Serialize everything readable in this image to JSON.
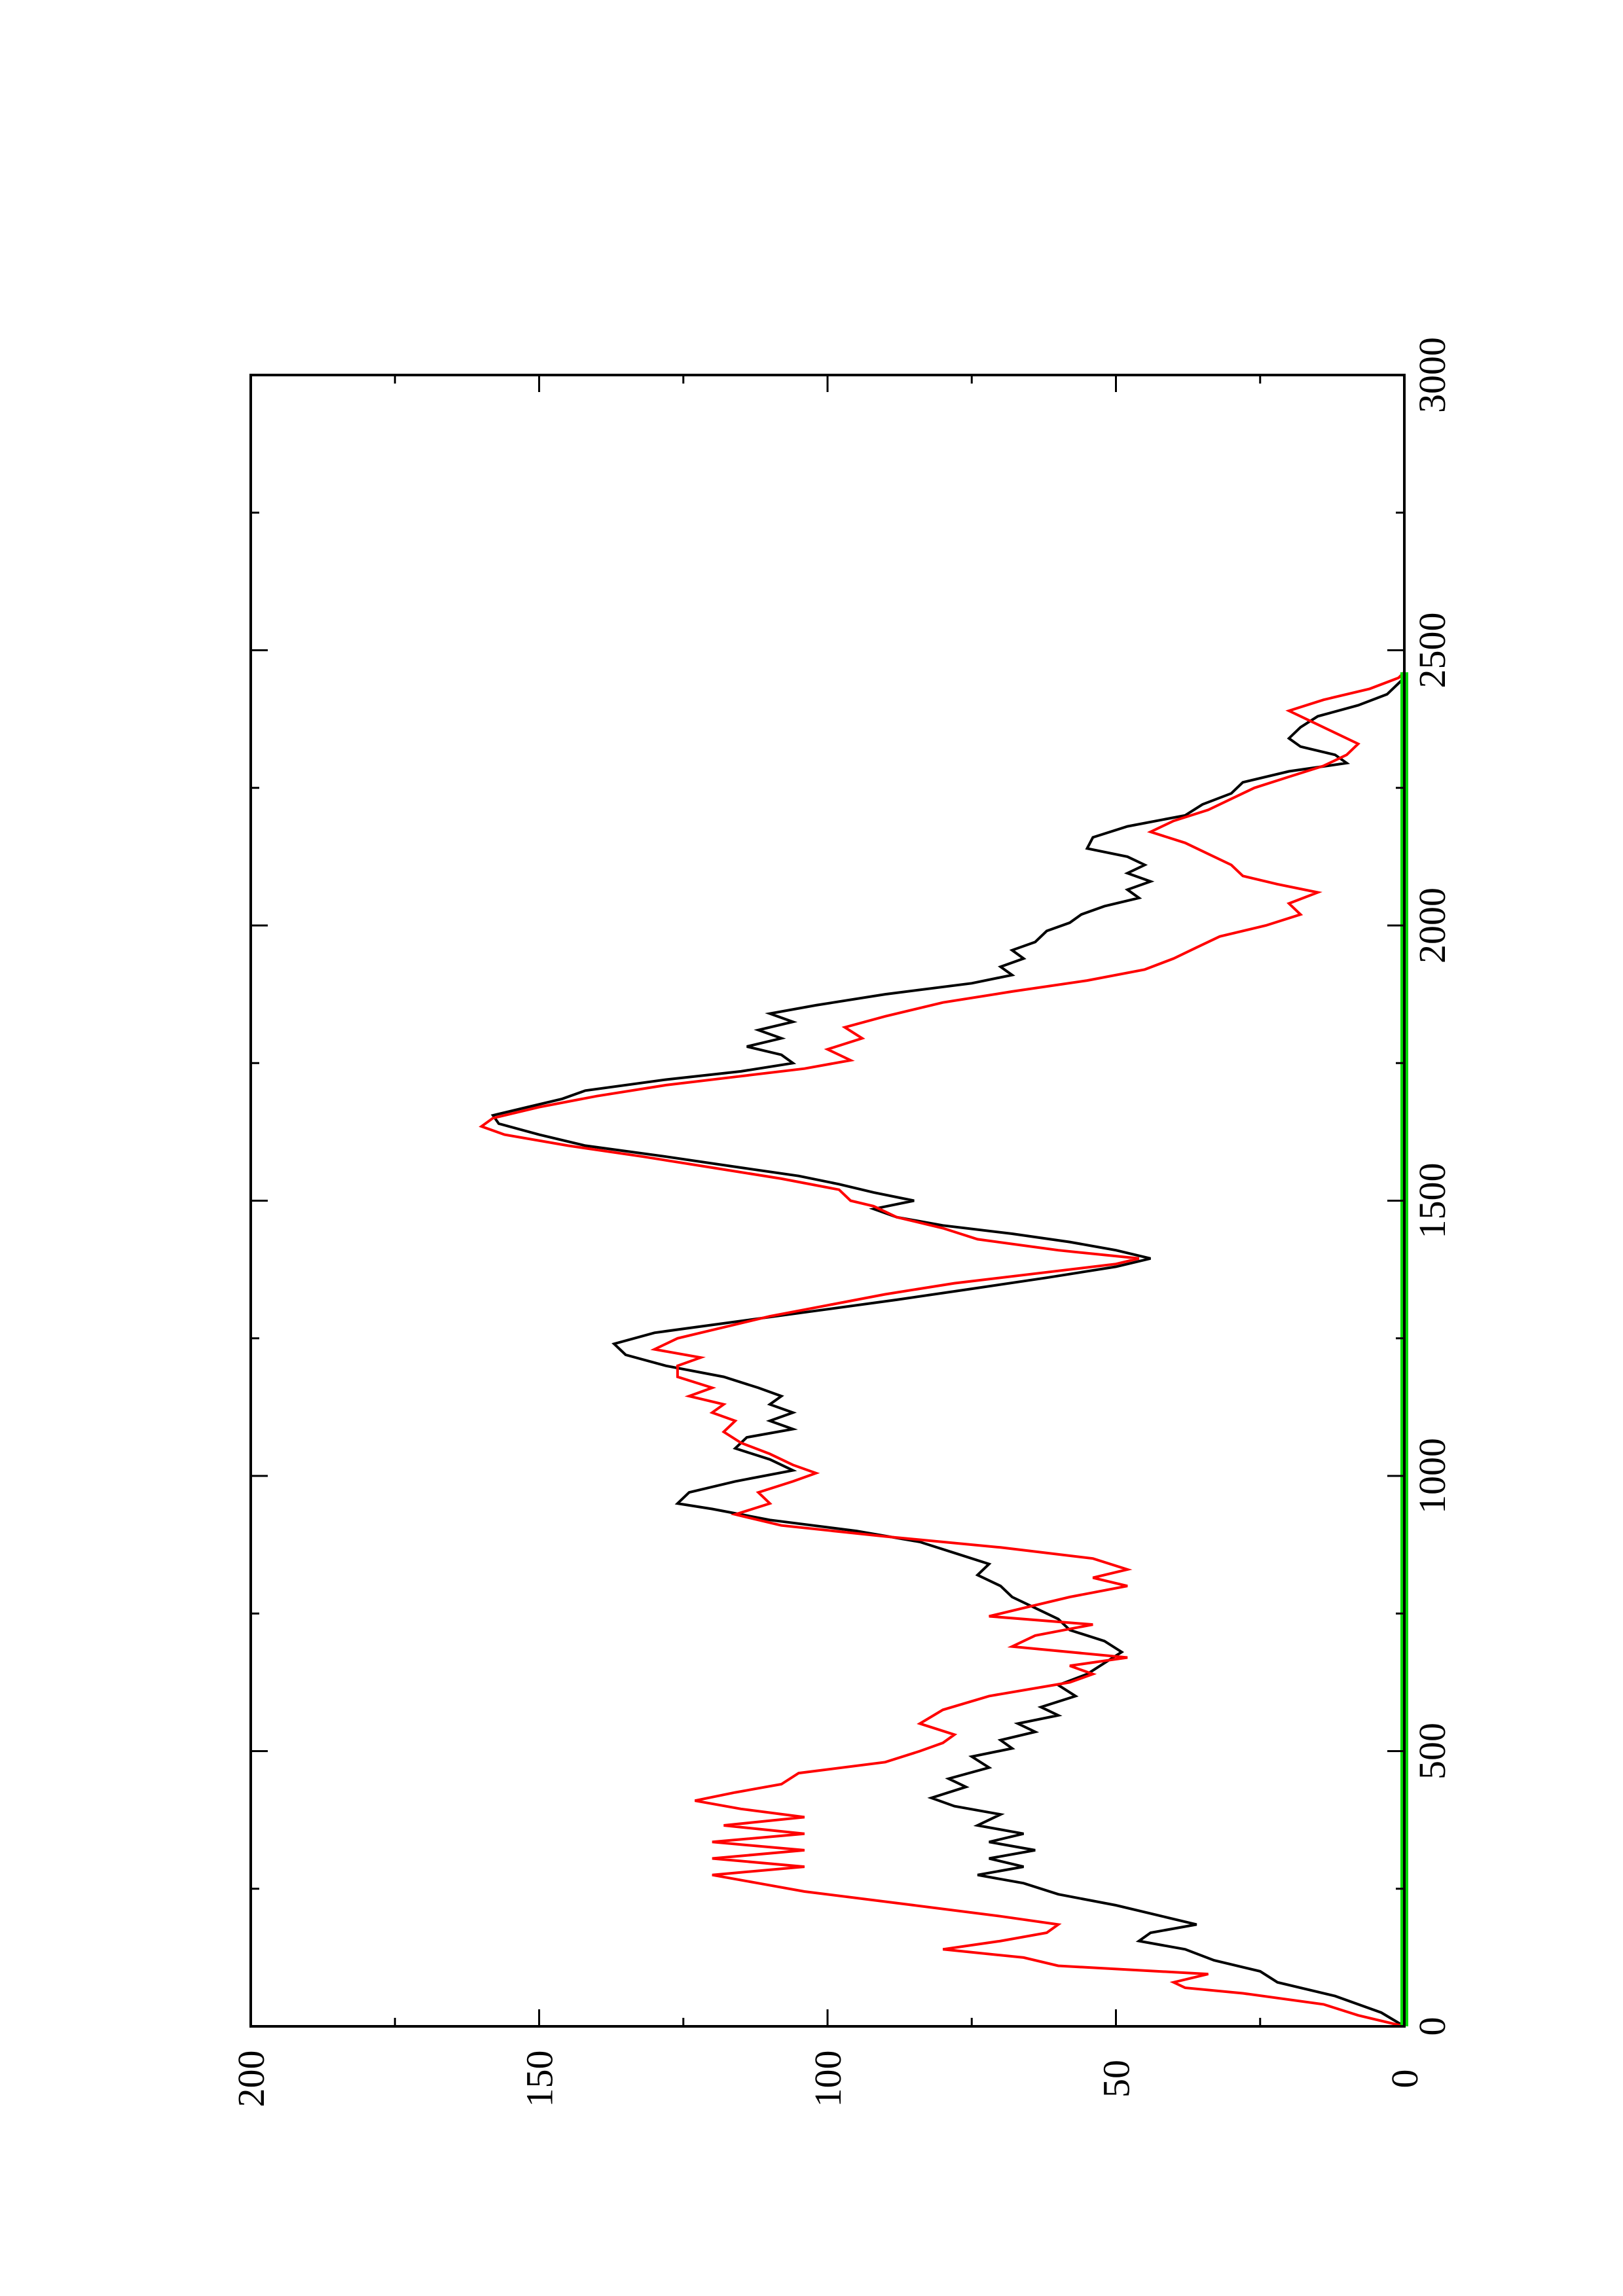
{
  "chart_data": {
    "type": "line",
    "orientation": "rotated-90-ccw",
    "title": "",
    "xlabel": "",
    "ylabel": "",
    "xlim": [
      0,
      3000
    ],
    "ylim": [
      0,
      200
    ],
    "x_ticks_major": [
      0,
      500,
      1000,
      1500,
      2000,
      2500,
      3000
    ],
    "x_tick_labels": [
      "0",
      "500",
      "1000",
      "1500",
      "2000",
      "2500",
      "3000"
    ],
    "y_ticks_major": [
      0,
      50,
      100,
      150,
      200
    ],
    "y_tick_labels": [
      "0",
      "50",
      "100",
      "150",
      "200"
    ],
    "grid": false,
    "legend": "none",
    "series": [
      {
        "color": "#000000",
        "points": [
          [
            0,
            0
          ],
          [
            25,
            4
          ],
          [
            55,
            12
          ],
          [
            80,
            22
          ],
          [
            100,
            25
          ],
          [
            120,
            33
          ],
          [
            140,
            38
          ],
          [
            155,
            46
          ],
          [
            170,
            44
          ],
          [
            185,
            36
          ],
          [
            200,
            42
          ],
          [
            220,
            50
          ],
          [
            240,
            60
          ],
          [
            260,
            66
          ],
          [
            275,
            74
          ],
          [
            290,
            66
          ],
          [
            305,
            72
          ],
          [
            320,
            64
          ],
          [
            335,
            72
          ],
          [
            350,
            66
          ],
          [
            365,
            74
          ],
          [
            385,
            70
          ],
          [
            400,
            78
          ],
          [
            415,
            82
          ],
          [
            435,
            76
          ],
          [
            450,
            79
          ],
          [
            470,
            72
          ],
          [
            490,
            75
          ],
          [
            505,
            68
          ],
          [
            520,
            70
          ],
          [
            535,
            64
          ],
          [
            550,
            67
          ],
          [
            565,
            60
          ],
          [
            580,
            63
          ],
          [
            600,
            57
          ],
          [
            620,
            60
          ],
          [
            640,
            55
          ],
          [
            660,
            52
          ],
          [
            680,
            49
          ],
          [
            700,
            52
          ],
          [
            720,
            58
          ],
          [
            740,
            60
          ],
          [
            760,
            64
          ],
          [
            780,
            68
          ],
          [
            800,
            70
          ],
          [
            820,
            74
          ],
          [
            840,
            72
          ],
          [
            860,
            78
          ],
          [
            880,
            84
          ],
          [
            900,
            95
          ],
          [
            920,
            110
          ],
          [
            940,
            120
          ],
          [
            950,
            126
          ],
          [
            970,
            124
          ],
          [
            990,
            116
          ],
          [
            1010,
            106
          ],
          [
            1030,
            110
          ],
          [
            1050,
            116
          ],
          [
            1070,
            114
          ],
          [
            1085,
            106
          ],
          [
            1100,
            110
          ],
          [
            1115,
            106
          ],
          [
            1130,
            110
          ],
          [
            1145,
            108
          ],
          [
            1160,
            112
          ],
          [
            1180,
            118
          ],
          [
            1200,
            128
          ],
          [
            1220,
            135
          ],
          [
            1240,
            137
          ],
          [
            1260,
            130
          ],
          [
            1280,
            116
          ],
          [
            1300,
            102
          ],
          [
            1320,
            88
          ],
          [
            1340,
            75
          ],
          [
            1360,
            62
          ],
          [
            1380,
            50
          ],
          [
            1395,
            44
          ],
          [
            1410,
            50
          ],
          [
            1425,
            58
          ],
          [
            1440,
            68
          ],
          [
            1455,
            80
          ],
          [
            1470,
            88
          ],
          [
            1485,
            92
          ],
          [
            1500,
            85
          ],
          [
            1515,
            92
          ],
          [
            1530,
            98
          ],
          [
            1545,
            105
          ],
          [
            1560,
            115
          ],
          [
            1580,
            128
          ],
          [
            1600,
            142
          ],
          [
            1620,
            150
          ],
          [
            1640,
            157
          ],
          [
            1655,
            158
          ],
          [
            1670,
            152
          ],
          [
            1685,
            146
          ],
          [
            1700,
            142
          ],
          [
            1720,
            128
          ],
          [
            1735,
            115
          ],
          [
            1750,
            106
          ],
          [
            1765,
            108
          ],
          [
            1780,
            114
          ],
          [
            1795,
            108
          ],
          [
            1810,
            112
          ],
          [
            1825,
            106
          ],
          [
            1840,
            110
          ],
          [
            1855,
            102
          ],
          [
            1875,
            90
          ],
          [
            1895,
            75
          ],
          [
            1910,
            68
          ],
          [
            1925,
            70
          ],
          [
            1940,
            66
          ],
          [
            1955,
            68
          ],
          [
            1970,
            64
          ],
          [
            1990,
            62
          ],
          [
            2005,
            58
          ],
          [
            2020,
            56
          ],
          [
            2035,
            52
          ],
          [
            2050,
            46
          ],
          [
            2065,
            48
          ],
          [
            2080,
            44
          ],
          [
            2095,
            48
          ],
          [
            2110,
            45
          ],
          [
            2125,
            48
          ],
          [
            2140,
            55
          ],
          [
            2160,
            54
          ],
          [
            2180,
            48
          ],
          [
            2200,
            38
          ],
          [
            2220,
            35
          ],
          [
            2240,
            30
          ],
          [
            2260,
            28
          ],
          [
            2280,
            20
          ],
          [
            2295,
            10
          ],
          [
            2310,
            12
          ],
          [
            2325,
            18
          ],
          [
            2340,
            20
          ],
          [
            2360,
            18
          ],
          [
            2380,
            15
          ],
          [
            2400,
            8
          ],
          [
            2420,
            3
          ],
          [
            2440,
            1
          ],
          [
            2450,
            0
          ]
        ]
      },
      {
        "color": "#ff0000",
        "points": [
          [
            0,
            0
          ],
          [
            20,
            8
          ],
          [
            40,
            14
          ],
          [
            60,
            28
          ],
          [
            70,
            38
          ],
          [
            80,
            40
          ],
          [
            95,
            34
          ],
          [
            110,
            60
          ],
          [
            125,
            66
          ],
          [
            140,
            80
          ],
          [
            155,
            70
          ],
          [
            170,
            62
          ],
          [
            185,
            60
          ],
          [
            200,
            70
          ],
          [
            220,
            85
          ],
          [
            245,
            104
          ],
          [
            260,
            112
          ],
          [
            275,
            120
          ],
          [
            290,
            104
          ],
          [
            305,
            120
          ],
          [
            320,
            104
          ],
          [
            335,
            120
          ],
          [
            350,
            104
          ],
          [
            365,
            118
          ],
          [
            380,
            104
          ],
          [
            395,
            115
          ],
          [
            410,
            123
          ],
          [
            425,
            116
          ],
          [
            440,
            108
          ],
          [
            460,
            105
          ],
          [
            480,
            90
          ],
          [
            500,
            84
          ],
          [
            515,
            80
          ],
          [
            530,
            78
          ],
          [
            550,
            84
          ],
          [
            575,
            80
          ],
          [
            600,
            72
          ],
          [
            625,
            58
          ],
          [
            640,
            54
          ],
          [
            655,
            58
          ],
          [
            670,
            48
          ],
          [
            690,
            68
          ],
          [
            710,
            64
          ],
          [
            730,
            54
          ],
          [
            745,
            72
          ],
          [
            760,
            66
          ],
          [
            780,
            58
          ],
          [
            800,
            48
          ],
          [
            815,
            54
          ],
          [
            830,
            48
          ],
          [
            850,
            54
          ],
          [
            870,
            70
          ],
          [
            890,
            90
          ],
          [
            910,
            108
          ],
          [
            930,
            116
          ],
          [
            950,
            110
          ],
          [
            970,
            112
          ],
          [
            990,
            106
          ],
          [
            1005,
            102
          ],
          [
            1020,
            106
          ],
          [
            1040,
            110
          ],
          [
            1060,
            115
          ],
          [
            1080,
            118
          ],
          [
            1100,
            116
          ],
          [
            1115,
            120
          ],
          [
            1130,
            118
          ],
          [
            1145,
            124
          ],
          [
            1160,
            120
          ],
          [
            1180,
            126
          ],
          [
            1200,
            126
          ],
          [
            1215,
            122
          ],
          [
            1230,
            130
          ],
          [
            1250,
            126
          ],
          [
            1270,
            118
          ],
          [
            1290,
            110
          ],
          [
            1310,
            100
          ],
          [
            1330,
            90
          ],
          [
            1350,
            78
          ],
          [
            1370,
            62
          ],
          [
            1385,
            50
          ],
          [
            1395,
            46
          ],
          [
            1410,
            60
          ],
          [
            1430,
            74
          ],
          [
            1450,
            80
          ],
          [
            1470,
            88
          ],
          [
            1490,
            92
          ],
          [
            1500,
            96
          ],
          [
            1520,
            98
          ],
          [
            1540,
            108
          ],
          [
            1560,
            120
          ],
          [
            1580,
            132
          ],
          [
            1600,
            145
          ],
          [
            1620,
            156
          ],
          [
            1635,
            160
          ],
          [
            1650,
            158
          ],
          [
            1670,
            150
          ],
          [
            1690,
            140
          ],
          [
            1710,
            128
          ],
          [
            1725,
            116
          ],
          [
            1740,
            104
          ],
          [
            1755,
            96
          ],
          [
            1775,
            100
          ],
          [
            1795,
            94
          ],
          [
            1815,
            97
          ],
          [
            1835,
            90
          ],
          [
            1860,
            80
          ],
          [
            1880,
            68
          ],
          [
            1900,
            55
          ],
          [
            1920,
            45
          ],
          [
            1940,
            40
          ],
          [
            1960,
            36
          ],
          [
            1980,
            32
          ],
          [
            2000,
            24
          ],
          [
            2020,
            18
          ],
          [
            2040,
            20
          ],
          [
            2060,
            15
          ],
          [
            2075,
            22
          ],
          [
            2090,
            28
          ],
          [
            2110,
            30
          ],
          [
            2130,
            34
          ],
          [
            2150,
            38
          ],
          [
            2170,
            44
          ],
          [
            2190,
            40
          ],
          [
            2210,
            34
          ],
          [
            2230,
            30
          ],
          [
            2250,
            26
          ],
          [
            2270,
            20
          ],
          [
            2290,
            14
          ],
          [
            2310,
            10
          ],
          [
            2330,
            8
          ],
          [
            2350,
            12
          ],
          [
            2370,
            16
          ],
          [
            2390,
            20
          ],
          [
            2410,
            14
          ],
          [
            2430,
            6
          ],
          [
            2450,
            1
          ],
          [
            2460,
            0
          ]
        ]
      },
      {
        "color": "#00dd00",
        "points": [
          [
            0,
            0
          ],
          [
            2460,
            0
          ]
        ]
      }
    ]
  }
}
